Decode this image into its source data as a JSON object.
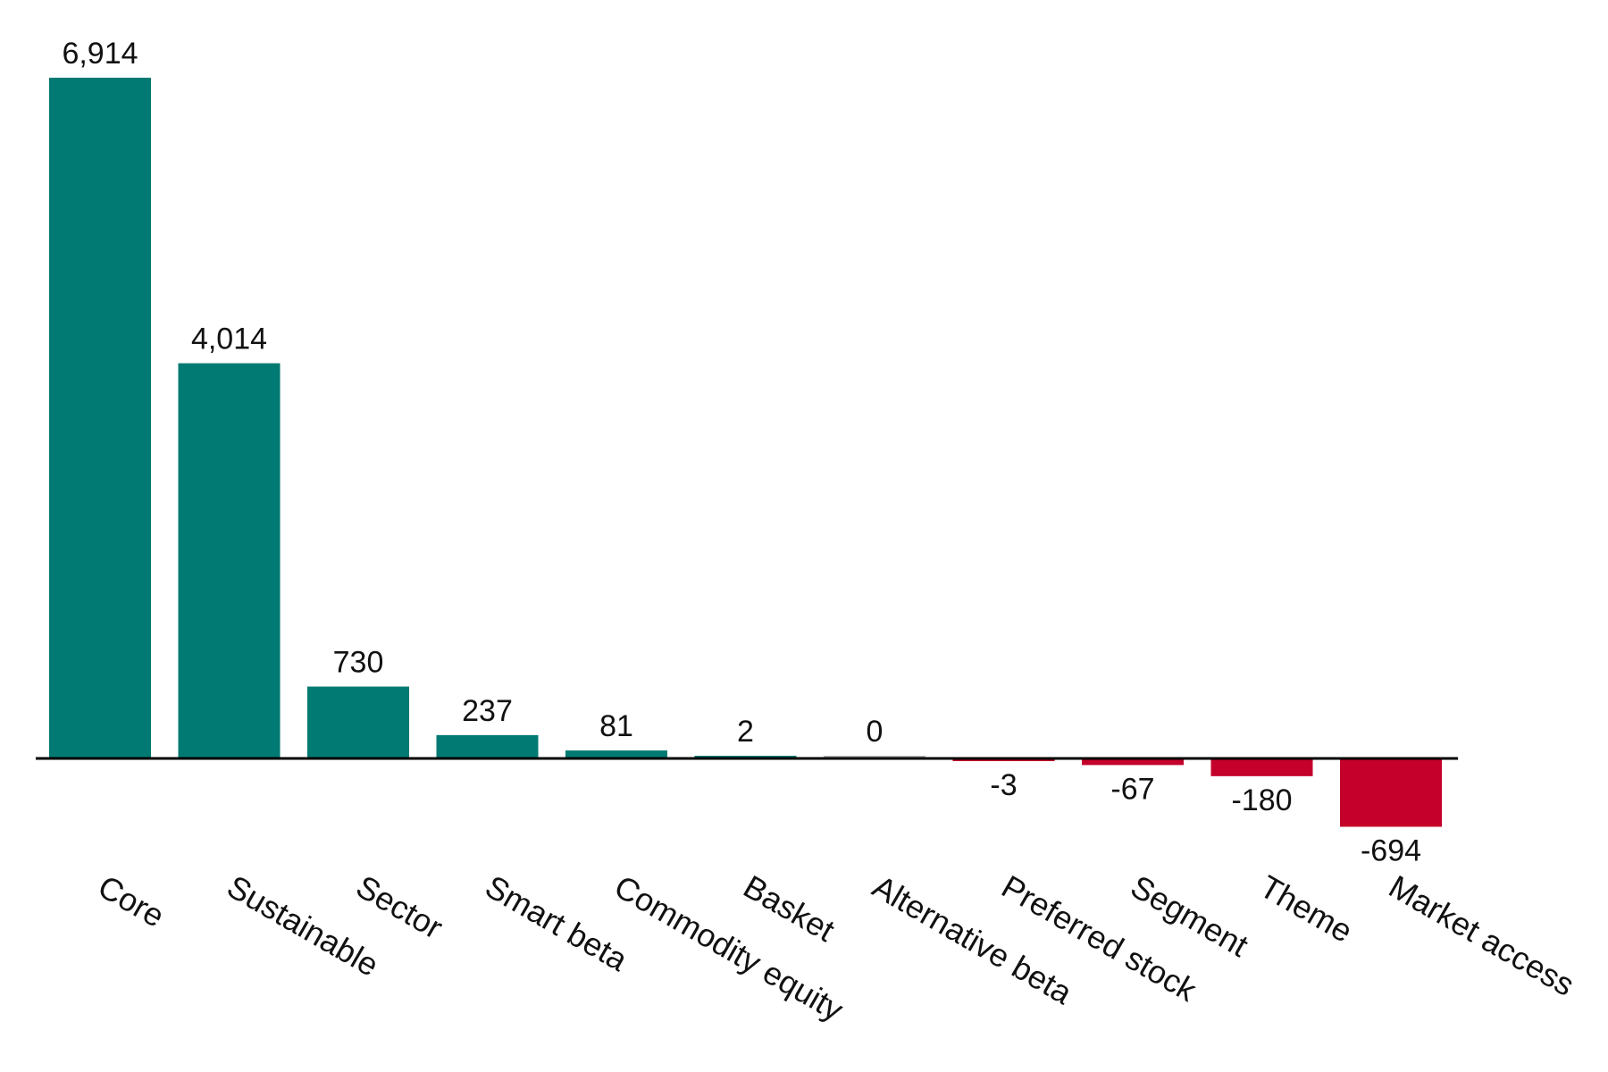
{
  "chart_data": {
    "type": "bar",
    "categories": [
      "Core",
      "Sustainable",
      "Sector",
      "Smart beta",
      "Commodity equity",
      "Basket",
      "Alternative beta",
      "Preferred stock",
      "Segment",
      "Theme",
      "Market access"
    ],
    "values": [
      6914,
      4014,
      730,
      237,
      81,
      2,
      0,
      -3,
      -67,
      -180,
      -694
    ],
    "value_labels": [
      "6,914",
      "4,014",
      "730",
      "237",
      "81",
      "2",
      "0",
      "-3",
      "-67",
      "-180",
      "-694"
    ],
    "ylim": [
      -694,
      6914
    ],
    "grid": false,
    "legend": "none",
    "colors": {
      "positive": "#007A72",
      "negative": "#C4002B",
      "zero_line": "#000000",
      "flat_bar": "#B3B3B3"
    }
  }
}
